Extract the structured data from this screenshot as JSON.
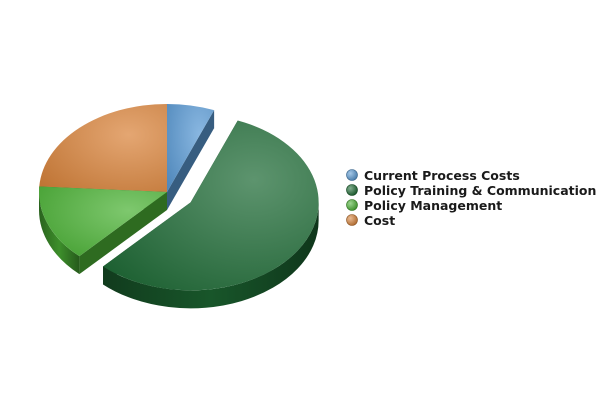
{
  "chart_data": {
    "type": "pie",
    "style": "3d",
    "exploded_slice": "Policy Training & Communication",
    "legend_position": "right",
    "slices": [
      {
        "label": "Current Process Costs",
        "value": 6,
        "color": "#5b9bd5"
      },
      {
        "label": "Policy Training & Communication",
        "value": 56,
        "color": "#1e6b35"
      },
      {
        "label": "Policy Management",
        "value": 14,
        "color": "#4cb336"
      },
      {
        "label": "Cost",
        "value": 24,
        "color": "#d9843b"
      }
    ]
  }
}
